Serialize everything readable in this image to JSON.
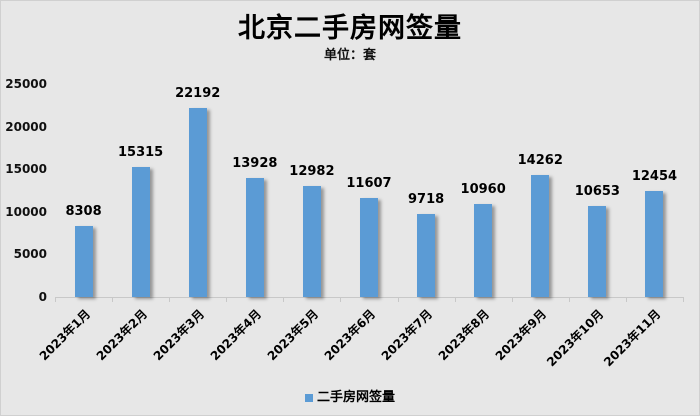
{
  "title": "北京二手房网签量",
  "subtitle": "单位：套",
  "legend": {
    "label": "二手房网签量",
    "color": "#5b9bd5"
  },
  "y_ticks": [
    "0",
    "5000",
    "10000",
    "15000",
    "20000",
    "25000"
  ],
  "chart_data": {
    "type": "bar",
    "title": "北京二手房网签量",
    "subtitle": "单位：套",
    "xlabel": "",
    "ylabel": "",
    "ylim": [
      0,
      25000
    ],
    "yticks": [
      0,
      5000,
      10000,
      15000,
      20000,
      25000
    ],
    "grid": false,
    "legend_position": "bottom",
    "categories": [
      "2023年1月",
      "2023年2月",
      "2023年3月",
      "2023年4月",
      "2023年5月",
      "2023年6月",
      "2023年7月",
      "2023年8月",
      "2023年9月",
      "2023年10月",
      "2023年11月"
    ],
    "series": [
      {
        "name": "二手房网签量",
        "color": "#5b9bd5",
        "values": [
          8308,
          15315,
          22192,
          13928,
          12982,
          11607,
          9718,
          10960,
          14262,
          10653,
          12454
        ]
      }
    ]
  }
}
